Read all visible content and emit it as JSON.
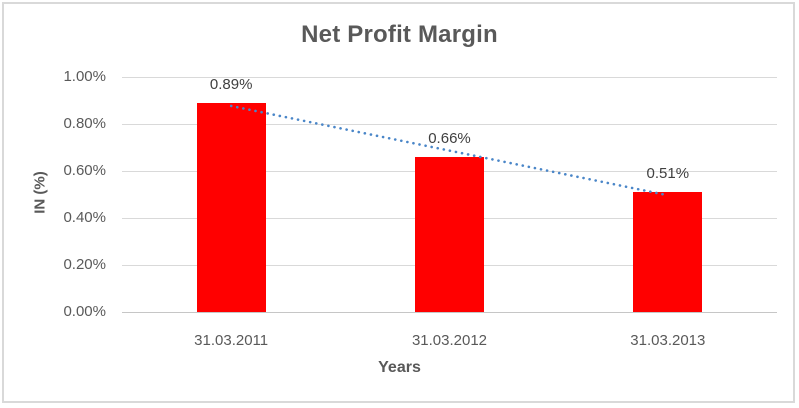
{
  "chart_data": {
    "type": "bar",
    "title": "Net Profit Margin",
    "xlabel": "Years",
    "ylabel": "IN (%)",
    "categories": [
      "31.03.2011",
      "31.03.2012",
      "31.03.2013"
    ],
    "values": [
      0.89,
      0.66,
      0.51
    ],
    "data_labels": [
      "0.89%",
      "0.66%",
      "0.51%"
    ],
    "ytick_labels": [
      "0.00%",
      "0.20%",
      "0.40%",
      "0.60%",
      "0.80%",
      "1.00%"
    ],
    "ylim": [
      0,
      1.0
    ],
    "grid": true,
    "legend": false,
    "trendline": {
      "type": "linear",
      "style": "dotted",
      "color": "#4A86C8"
    },
    "colors": {
      "bar": "#FF0000",
      "gridline": "#D9D9D9",
      "axis_line": "#C6C6C6",
      "text": "#595959",
      "label_text": "#404040",
      "border": "#D9D9D9",
      "background": "#FFFFFF"
    }
  }
}
